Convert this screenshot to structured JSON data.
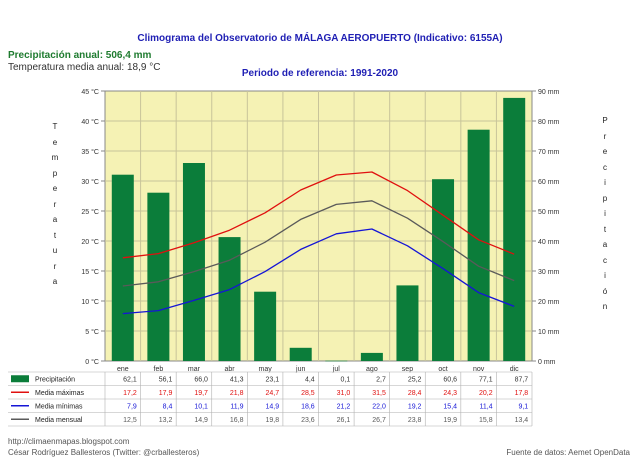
{
  "chart_data": {
    "type": "bar",
    "title": "Climograma del Observatorio de MÁLAGA AEROPUERTO (Indicativo: 6155A)",
    "subtitle": "Periodo de referencia: 1991-2020",
    "precip_annual_text": "Precipitación anual: 506,4 mm",
    "temp_annual_text": "Temperatura media anual: 18,9 °C",
    "ylabel_left": "Temperatura",
    "ylabel_right": "Precipitación",
    "categories": [
      "ene",
      "feb",
      "mar",
      "abr",
      "may",
      "jun",
      "jul",
      "ago",
      "sep",
      "oct",
      "nov",
      "dic"
    ],
    "ylim_left": [
      0,
      45
    ],
    "ylim_right": [
      0,
      90
    ],
    "yticks_left": [
      "0 °C",
      "5 °C",
      "10 °C",
      "15 °C",
      "20 °C",
      "25 °C",
      "30 °C",
      "35 °C",
      "40 °C",
      "45 °C"
    ],
    "yticks_right": [
      "0 mm",
      "10 mm",
      "20 mm",
      "30 mm",
      "40 mm",
      "50 mm",
      "60 mm",
      "70 mm",
      "80 mm",
      "90 mm"
    ],
    "series": [
      {
        "name": "Precipitación",
        "kind": "bar",
        "axis": "right",
        "color": "#0b7d3a",
        "values": [
          62.1,
          56.1,
          66.0,
          41.3,
          23.1,
          4.4,
          0.1,
          2.7,
          25.2,
          60.6,
          77.1,
          87.7
        ],
        "labels": [
          "62,1",
          "56,1",
          "66,0",
          "41,3",
          "23,1",
          "4,4",
          "0,1",
          "2,7",
          "25,2",
          "60,6",
          "77,1",
          "87,7"
        ]
      },
      {
        "name": "Media máximas",
        "kind": "line",
        "axis": "left",
        "color": "#e0100f",
        "values": [
          17.2,
          17.9,
          19.7,
          21.8,
          24.7,
          28.5,
          31.0,
          31.5,
          28.4,
          24.3,
          20.2,
          17.8
        ],
        "labels": [
          "17,2",
          "17,9",
          "19,7",
          "21,8",
          "24,7",
          "28,5",
          "31,0",
          "31,5",
          "28,4",
          "24,3",
          "20,2",
          "17,8"
        ]
      },
      {
        "name": "Media mínimas",
        "kind": "line",
        "axis": "left",
        "color": "#1515d6",
        "values": [
          7.9,
          8.4,
          10.1,
          11.9,
          14.9,
          18.6,
          21.2,
          22.0,
          19.2,
          15.4,
          11.4,
          9.1
        ],
        "labels": [
          "7,9",
          "8,4",
          "10,1",
          "11,9",
          "14,9",
          "18,6",
          "21,2",
          "22,0",
          "19,2",
          "15,4",
          "11,4",
          "9,1"
        ]
      },
      {
        "name": "Media mensual",
        "kind": "line",
        "axis": "left",
        "color": "#5a5a5a",
        "values": [
          12.5,
          13.2,
          14.9,
          16.8,
          19.8,
          23.6,
          26.1,
          26.7,
          23.8,
          19.9,
          15.8,
          13.4
        ],
        "labels": [
          "12,5",
          "13,2",
          "14,9",
          "16,8",
          "19,8",
          "23,6",
          "26,1",
          "26,7",
          "23,8",
          "19,9",
          "15,8",
          "13,4"
        ]
      }
    ],
    "plot_background": "#f5f2b4",
    "grid": true
  },
  "footer": {
    "url": "http://climaenmapas.blogspot.com",
    "author": "César Rodríguez Ballesteros (Twitter: @crballesteros)",
    "source": "Fuente de datos: Aemet OpenData"
  }
}
